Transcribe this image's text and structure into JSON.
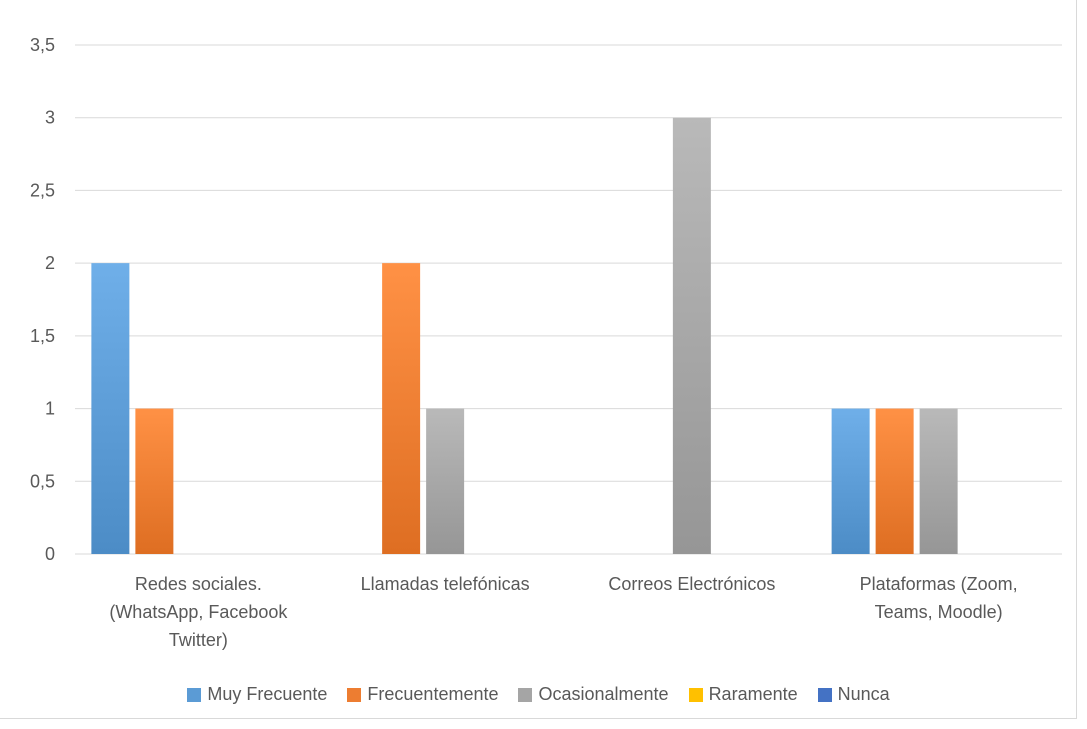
{
  "chart_data": {
    "type": "bar",
    "categories": [
      [
        "Redes sociales.",
        "(WhatsApp, Facebook",
        "Twitter)"
      ],
      [
        "Llamadas telefónicas"
      ],
      [
        "Correos Electrónicos"
      ],
      [
        "Plataformas (Zoom,",
        "Teams, Moodle)"
      ]
    ],
    "series": [
      {
        "name": "Muy Frecuente",
        "values": [
          2,
          0,
          0,
          1
        ],
        "color": "#5b9bd5"
      },
      {
        "name": "Frecuentemente",
        "values": [
          1,
          2,
          0,
          1
        ],
        "color": "#ed7d31"
      },
      {
        "name": "Ocasionalmente",
        "values": [
          0,
          1,
          3,
          1
        ],
        "color": "#a5a5a5"
      },
      {
        "name": "Raramente",
        "values": [
          0,
          0,
          0,
          0
        ],
        "color": "#ffc000"
      },
      {
        "name": "Nunca",
        "values": [
          0,
          0,
          0,
          0
        ],
        "color": "#4472c4"
      }
    ],
    "ylim": [
      0,
      3.5
    ],
    "yticks": [
      "0",
      "0,5",
      "1",
      "1,5",
      "2",
      "2,5",
      "3",
      "3,5"
    ],
    "grid": true,
    "legend": "bottom"
  }
}
